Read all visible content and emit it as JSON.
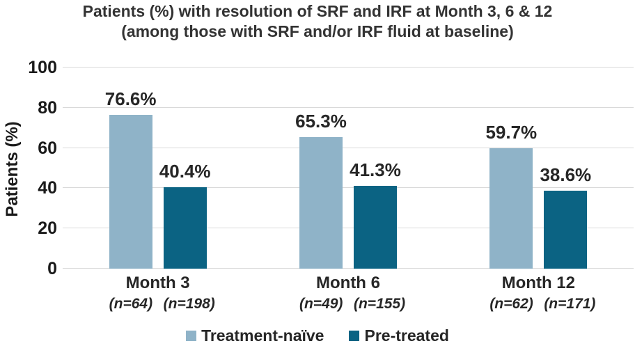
{
  "chart_data": {
    "type": "bar",
    "title_lines": [
      "Patients (%) with resolution of SRF and IRF at Month 3, 6 & 12",
      "(among those with SRF and/or IRF fluid at baseline)"
    ],
    "ylabel": "Patients (%)",
    "xlabel": "",
    "ylim": [
      0,
      100
    ],
    "yticks": [
      0,
      20,
      40,
      60,
      80,
      100
    ],
    "grid": true,
    "legend_position": "bottom",
    "categories": [
      "Month 3",
      "Month 6",
      "Month 12"
    ],
    "series": [
      {
        "name": "Treatment-naïve",
        "color": "#8FB3C8",
        "values": [
          76.6,
          65.3,
          59.7
        ],
        "value_labels": [
          "76.6%",
          "65.3%",
          "59.7%"
        ],
        "n_labels": [
          "(n=64)",
          "(n=49)",
          "(n=62)"
        ]
      },
      {
        "name": "Pre-treated",
        "color": "#0B6383",
        "values": [
          40.4,
          41.3,
          38.6
        ],
        "value_labels": [
          "40.4%",
          "41.3%",
          "38.6%"
        ],
        "n_labels": [
          "(n=198)",
          "(n=155)",
          "(n=171)"
        ]
      }
    ]
  }
}
